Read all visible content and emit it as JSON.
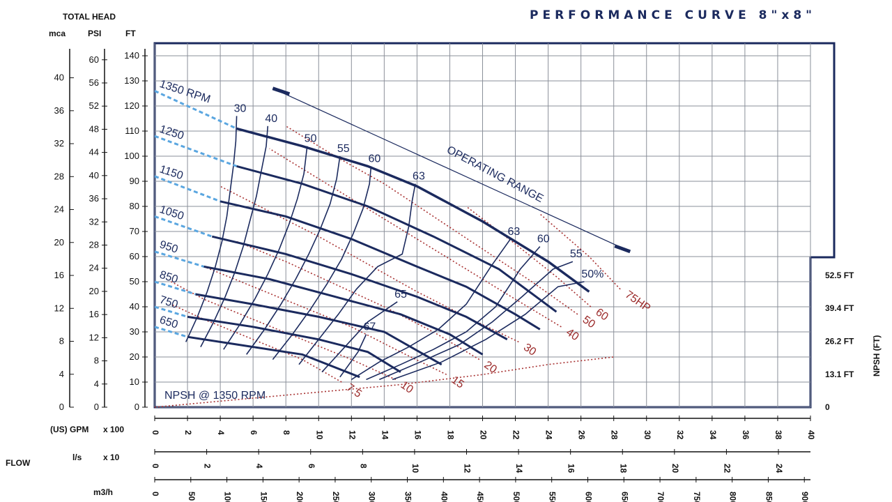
{
  "chart_data": {
    "type": "line",
    "title": "PERFORMANCE CURVE 8\"x8\"",
    "yheader": "TOTAL HEAD",
    "y_units": [
      "mca",
      "PSI",
      "FT"
    ],
    "flow_label": "FLOW",
    "x_units": [
      {
        "unit": "(US) GPM",
        "mult": "x 100",
        "ticks": [
          "0",
          "2",
          "4",
          "6",
          "8",
          "10",
          "12",
          "14",
          "16",
          "18",
          "20",
          "22",
          "24",
          "26",
          "28",
          "30",
          "32",
          "34",
          "36",
          "38",
          "40"
        ]
      },
      {
        "unit": "l/s",
        "mult": "x 10",
        "ticks": [
          "0",
          "2",
          "4",
          "6",
          "8",
          "10",
          "12",
          "14",
          "16",
          "18",
          "20",
          "22",
          "24"
        ]
      },
      {
        "unit": "m3/h",
        "mult": "",
        "ticks": [
          "0",
          "50",
          "100",
          "150",
          "200",
          "250",
          "300",
          "350",
          "400",
          "450",
          "500",
          "550",
          "600",
          "650",
          "700",
          "750",
          "800",
          "850",
          "900"
        ]
      }
    ],
    "y_ft_ticks": [
      "0",
      "10",
      "20",
      "30",
      "40",
      "50",
      "60",
      "70",
      "80",
      "90",
      "100",
      "110",
      "120",
      "130",
      "140"
    ],
    "y_psi_ticks": [
      "0",
      "4",
      "8",
      "12",
      "16",
      "20",
      "24",
      "28",
      "32",
      "36",
      "40",
      "44",
      "48",
      "52",
      "56",
      "60"
    ],
    "y_mca_ticks": [
      "0",
      "4",
      "8",
      "12",
      "16",
      "20",
      "24",
      "28",
      "32",
      "36",
      "40"
    ],
    "npsh_label": "NPSH (FT)",
    "npsh_ticks": [
      "0",
      "13.1 FT",
      "26.2 FT",
      "39.4 FT",
      "52.5 FT"
    ],
    "npsh_values": [
      0,
      13.1,
      26.2,
      39.4,
      52.5
    ],
    "xlim_gpm100": [
      0,
      40
    ],
    "ylim_ft": [
      0,
      145
    ],
    "head_curves": [
      {
        "name": "1350 RPM",
        "points": [
          [
            0,
            126
          ],
          [
            5,
            111
          ],
          [
            9,
            104
          ],
          [
            13,
            96
          ],
          [
            16,
            88
          ],
          [
            20,
            74
          ],
          [
            24,
            58
          ],
          [
            26.5,
            46
          ]
        ]
      },
      {
        "name": "1250",
        "points": [
          [
            0,
            108
          ],
          [
            5,
            96
          ],
          [
            9,
            89
          ],
          [
            13,
            80
          ],
          [
            17,
            68
          ],
          [
            21,
            55
          ],
          [
            24.5,
            38
          ]
        ]
      },
      {
        "name": "1150",
        "points": [
          [
            0,
            92
          ],
          [
            4,
            82
          ],
          [
            8,
            76
          ],
          [
            12,
            67
          ],
          [
            16,
            56
          ],
          [
            19,
            48
          ],
          [
            22,
            37
          ],
          [
            23.5,
            31
          ]
        ]
      },
      {
        "name": "1050",
        "points": [
          [
            0,
            76
          ],
          [
            3.5,
            68
          ],
          [
            8,
            61
          ],
          [
            12,
            53
          ],
          [
            16,
            44
          ],
          [
            19,
            36
          ],
          [
            21.5,
            27
          ]
        ]
      },
      {
        "name": "950",
        "points": [
          [
            0,
            62
          ],
          [
            3,
            56
          ],
          [
            7,
            51
          ],
          [
            11,
            44
          ],
          [
            15,
            37
          ],
          [
            18,
            29
          ],
          [
            20,
            21
          ]
        ]
      },
      {
        "name": "850",
        "points": [
          [
            0,
            50
          ],
          [
            2.5,
            45
          ],
          [
            6,
            41
          ],
          [
            10,
            36
          ],
          [
            14,
            30
          ],
          [
            17.5,
            17
          ]
        ]
      },
      {
        "name": "750",
        "points": [
          [
            0,
            40
          ],
          [
            2,
            36
          ],
          [
            6,
            32
          ],
          [
            10,
            27
          ],
          [
            13,
            22
          ],
          [
            15,
            14
          ]
        ]
      },
      {
        "name": "650",
        "points": [
          [
            0,
            32
          ],
          [
            2,
            28
          ],
          [
            5,
            25
          ],
          [
            9,
            21
          ],
          [
            12.5,
            12
          ]
        ]
      }
    ],
    "efficiency_lines": [
      {
        "name": "30",
        "points": [
          [
            1.9,
            26
          ],
          [
            2.6,
            36
          ],
          [
            3.2,
            46
          ],
          [
            3.7,
            56
          ],
          [
            4.1,
            66
          ],
          [
            4.4,
            76
          ],
          [
            4.6,
            86
          ],
          [
            4.8,
            96
          ],
          [
            4.95,
            106
          ],
          [
            5.0,
            116
          ]
        ]
      },
      {
        "name": "40",
        "points": [
          [
            2.8,
            24
          ],
          [
            3.6,
            34
          ],
          [
            4.3,
            44
          ],
          [
            4.9,
            54
          ],
          [
            5.4,
            64
          ],
          [
            5.8,
            74
          ],
          [
            6.2,
            84
          ],
          [
            6.5,
            94
          ],
          [
            6.8,
            104
          ],
          [
            6.9,
            112
          ]
        ]
      },
      {
        "name": "50",
        "points": [
          [
            4.2,
            23
          ],
          [
            5.2,
            33
          ],
          [
            6.1,
            43
          ],
          [
            6.9,
            53
          ],
          [
            7.6,
            63
          ],
          [
            8.2,
            73
          ],
          [
            8.7,
            83
          ],
          [
            9.1,
            93
          ],
          [
            9.3,
            104
          ]
        ]
      },
      {
        "name": "55",
        "points": [
          [
            5.6,
            21
          ],
          [
            6.7,
            31
          ],
          [
            7.7,
            41
          ],
          [
            8.6,
            51
          ],
          [
            9.4,
            61
          ],
          [
            10.1,
            71
          ],
          [
            10.7,
            81
          ],
          [
            11.1,
            91
          ],
          [
            11.3,
            100
          ]
        ]
      },
      {
        "name": "60",
        "points": [
          [
            7.2,
            19
          ],
          [
            8.4,
            29
          ],
          [
            9.5,
            39
          ],
          [
            10.5,
            49
          ],
          [
            11.4,
            59
          ],
          [
            12.1,
            69
          ],
          [
            12.7,
            79
          ],
          [
            13.1,
            89
          ],
          [
            13.2,
            96
          ]
        ]
      },
      {
        "name": "63",
        "points": [
          [
            8.8,
            17
          ],
          [
            10.0,
            27
          ],
          [
            11.2,
            37
          ],
          [
            12.3,
            47
          ],
          [
            13.6,
            56
          ],
          [
            15.1,
            61
          ],
          [
            15.5,
            72
          ],
          [
            15.7,
            82
          ],
          [
            15.9,
            89
          ]
        ]
      },
      {
        "name": "65",
        "points": [
          [
            10.2,
            14
          ],
          [
            11.6,
            24
          ],
          [
            13.0,
            34
          ],
          [
            14.8,
            42
          ]
        ]
      },
      {
        "name": "67",
        "points": [
          [
            11.3,
            12
          ],
          [
            12.4,
            22
          ],
          [
            12.9,
            29
          ]
        ]
      },
      {
        "name": "63",
        "points": [
          [
            12.0,
            11
          ],
          [
            13.7,
            18
          ],
          [
            15.5,
            24
          ],
          [
            17.3,
            31
          ],
          [
            19.0,
            41
          ],
          [
            20.5,
            56
          ],
          [
            21.7,
            67
          ]
        ]
      },
      {
        "name": "60",
        "points": [
          [
            12.9,
            11
          ],
          [
            15.0,
            17
          ],
          [
            17.0,
            23
          ],
          [
            19.0,
            30
          ],
          [
            20.8,
            40
          ],
          [
            22.3,
            55
          ],
          [
            23.5,
            64
          ]
        ]
      },
      {
        "name": "55",
        "points": [
          [
            13.7,
            11
          ],
          [
            16.2,
            18
          ],
          [
            18.6,
            25
          ],
          [
            20.6,
            34
          ],
          [
            22.4,
            44
          ],
          [
            24.3,
            55
          ],
          [
            25.5,
            58
          ]
        ]
      },
      {
        "name": "50%",
        "points": [
          [
            14.5,
            11
          ],
          [
            17.5,
            18
          ],
          [
            20.2,
            27
          ],
          [
            22.6,
            37
          ],
          [
            24.6,
            48
          ],
          [
            26.2,
            50
          ]
        ]
      }
    ],
    "power_lines": [
      {
        "name": "7.5",
        "points": [
          [
            11.4,
            10
          ],
          [
            9,
            19
          ],
          [
            6,
            27
          ],
          [
            3,
            35
          ],
          [
            1,
            41
          ]
        ]
      },
      {
        "name": "10",
        "points": [
          [
            14.7,
            11
          ],
          [
            12,
            19
          ],
          [
            9,
            27
          ],
          [
            6,
            35
          ],
          [
            3,
            43
          ],
          [
            1,
            50
          ]
        ]
      },
      {
        "name": "15",
        "points": [
          [
            17.8,
            13
          ],
          [
            15,
            22
          ],
          [
            12,
            32
          ],
          [
            9,
            40
          ],
          [
            6,
            48
          ],
          [
            3,
            56
          ]
        ]
      },
      {
        "name": "20",
        "points": [
          [
            19.8,
            19
          ],
          [
            17,
            30
          ],
          [
            14,
            40
          ],
          [
            11,
            49
          ],
          [
            8,
            58
          ],
          [
            5,
            66
          ]
        ]
      },
      {
        "name": "30",
        "points": [
          [
            22.2,
            26
          ],
          [
            19,
            36
          ],
          [
            16,
            46
          ],
          [
            13,
            57
          ],
          [
            10,
            68
          ],
          [
            7,
            78
          ],
          [
            4,
            88
          ]
        ]
      },
      {
        "name": "40",
        "points": [
          [
            24.8,
            32
          ],
          [
            22,
            43
          ],
          [
            19,
            55
          ],
          [
            16,
            67
          ],
          [
            13,
            79
          ],
          [
            10,
            91
          ],
          [
            7,
            103
          ]
        ]
      },
      {
        "name": "50",
        "points": [
          [
            25.8,
            37
          ],
          [
            23,
            50
          ],
          [
            20,
            63
          ],
          [
            17,
            76
          ],
          [
            14,
            89
          ],
          [
            11,
            100
          ],
          [
            8,
            112
          ]
        ]
      },
      {
        "name": "60",
        "points": [
          [
            26.6,
            40
          ],
          [
            24.5,
            52
          ],
          [
            22,
            65
          ],
          [
            19,
            80
          ]
        ]
      },
      {
        "name": "75HP",
        "points": [
          [
            28.4,
            47
          ],
          [
            26.5,
            60
          ],
          [
            23.5,
            77
          ]
        ]
      }
    ],
    "operating_range_label": "OPERATING RANGE",
    "npsh_curve": {
      "name": "NPSH @ 1350 RPM",
      "points_npsh_ft": [
        [
          0,
          0
        ],
        [
          5,
          3
        ],
        [
          10,
          6
        ],
        [
          15,
          9
        ],
        [
          20,
          13
        ],
        [
          24,
          17
        ],
        [
          28,
          20
        ]
      ]
    }
  }
}
